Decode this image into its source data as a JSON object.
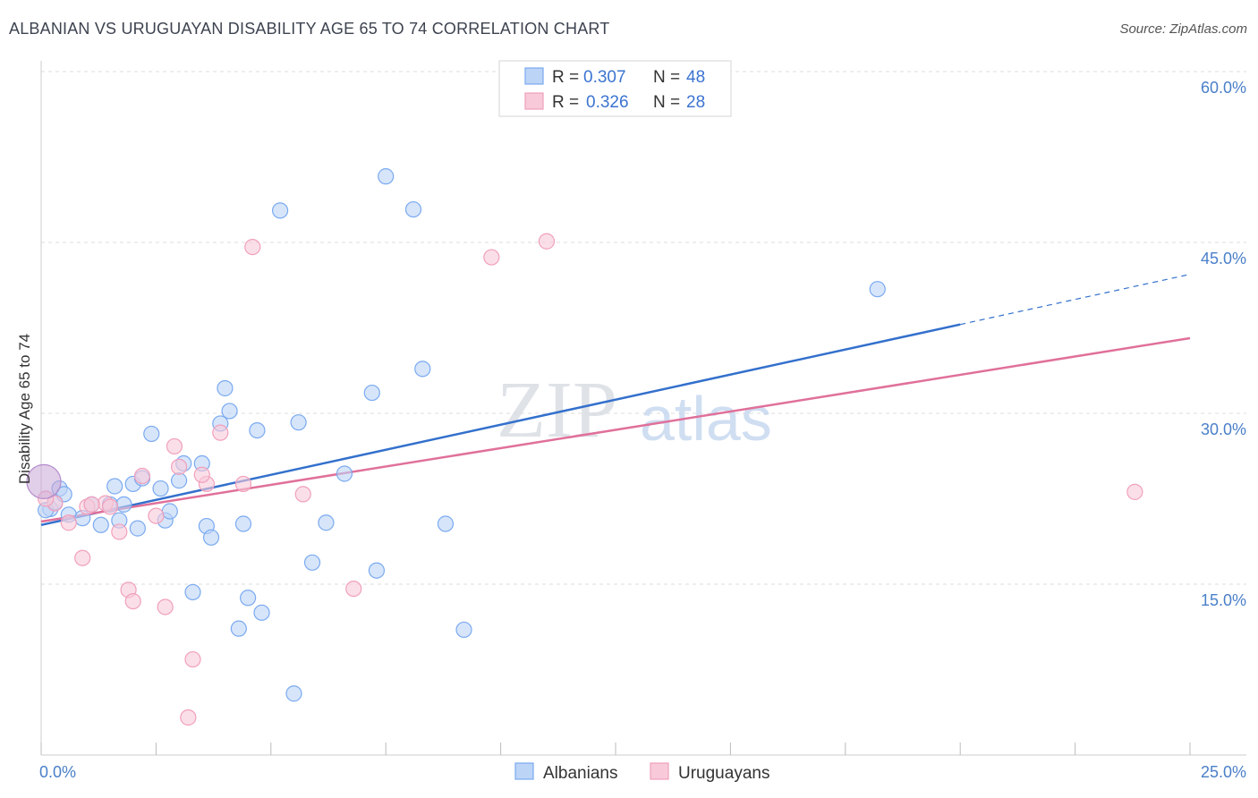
{
  "chart_data": {
    "type": "scatter",
    "title": "ALBANIAN VS URUGUAYAN DISABILITY AGE 65 TO 74 CORRELATION CHART",
    "source": "Source: ZipAtlas.com",
    "xlabel": "",
    "ylabel": "Disability Age 65 to 74",
    "xlim": [
      0,
      25
    ],
    "ylim": [
      0,
      60
    ],
    "x_tick_labels": {
      "min": "0.0%",
      "max": "25.0%"
    },
    "y_ticks": [
      15,
      30,
      45,
      60
    ],
    "y_tick_labels": [
      "15.0%",
      "30.0%",
      "45.0%",
      "60.0%"
    ],
    "watermark": {
      "zip": "ZIP",
      "atlas": "atlas"
    },
    "legend": {
      "r_label": "R =",
      "n_label": "N =",
      "entries": [
        {
          "series": "Albanians",
          "r": "0.307",
          "n": "48"
        },
        {
          "series": "Uruguayans",
          "r": "0.326",
          "n": "28"
        }
      ]
    },
    "series": [
      {
        "name": "Albanians",
        "color": "#7aaaf0",
        "fill": "#bcd4f6",
        "line_color": "#3370cc",
        "trend": {
          "x0": 0,
          "y0": 20.2,
          "x1": 20,
          "y1": 37.8,
          "dash_to_x": 25,
          "dash_to_y": 42.2
        },
        "points": [
          [
            0.2,
            21.6
          ],
          [
            0.4,
            23.4
          ],
          [
            0.6,
            21.1
          ],
          [
            0.9,
            20.8
          ],
          [
            1.1,
            22.0
          ],
          [
            1.3,
            20.2
          ],
          [
            1.5,
            22.0
          ],
          [
            1.6,
            23.6
          ],
          [
            1.7,
            20.6
          ],
          [
            2.0,
            23.8
          ],
          [
            2.1,
            19.9
          ],
          [
            2.2,
            24.3
          ],
          [
            2.4,
            28.2
          ],
          [
            2.6,
            23.4
          ],
          [
            2.7,
            20.6
          ],
          [
            2.8,
            21.4
          ],
          [
            3.0,
            24.1
          ],
          [
            3.1,
            25.6
          ],
          [
            3.3,
            14.3
          ],
          [
            3.5,
            25.6
          ],
          [
            3.6,
            20.1
          ],
          [
            3.7,
            19.1
          ],
          [
            3.9,
            29.1
          ],
          [
            4.0,
            32.2
          ],
          [
            4.1,
            30.2
          ],
          [
            4.3,
            11.1
          ],
          [
            4.4,
            20.3
          ],
          [
            4.5,
            13.8
          ],
          [
            4.7,
            28.5
          ],
          [
            4.8,
            12.5
          ],
          [
            5.2,
            47.8
          ],
          [
            5.5,
            5.4
          ],
          [
            5.6,
            29.2
          ],
          [
            5.9,
            16.9
          ],
          [
            6.2,
            20.4
          ],
          [
            6.6,
            24.7
          ],
          [
            7.2,
            31.8
          ],
          [
            7.3,
            16.2
          ],
          [
            7.5,
            50.8
          ],
          [
            8.1,
            47.9
          ],
          [
            8.3,
            33.9
          ],
          [
            8.8,
            20.3
          ],
          [
            9.2,
            11.0
          ],
          [
            18.2,
            40.9
          ],
          [
            0.1,
            21.5
          ],
          [
            0.3,
            22.2
          ],
          [
            1.8,
            22.0
          ],
          [
            0.5,
            22.9
          ]
        ],
        "big_point": [
          0.0,
          24.0
        ]
      },
      {
        "name": "Uruguayans",
        "color": "#f0a0bc",
        "fill": "#f8cad9",
        "line_color": "#e0709a",
        "trend": {
          "x0": 0,
          "y0": 20.5,
          "x1": 25,
          "y1": 36.6
        },
        "points": [
          [
            0.3,
            22.1
          ],
          [
            0.6,
            20.4
          ],
          [
            0.9,
            17.3
          ],
          [
            1.0,
            21.8
          ],
          [
            1.4,
            22.1
          ],
          [
            1.5,
            21.8
          ],
          [
            1.7,
            19.6
          ],
          [
            1.9,
            14.5
          ],
          [
            2.0,
            13.5
          ],
          [
            2.2,
            24.5
          ],
          [
            2.5,
            21.0
          ],
          [
            2.7,
            13.0
          ],
          [
            2.9,
            27.1
          ],
          [
            3.0,
            25.3
          ],
          [
            3.3,
            8.4
          ],
          [
            3.2,
            3.3
          ],
          [
            3.6,
            23.8
          ],
          [
            3.9,
            28.3
          ],
          [
            4.4,
            23.8
          ],
          [
            4.6,
            44.6
          ],
          [
            5.7,
            22.9
          ],
          [
            6.8,
            14.6
          ],
          [
            9.8,
            43.7
          ],
          [
            11.0,
            45.1
          ],
          [
            23.8,
            23.1
          ],
          [
            0.1,
            22.5
          ],
          [
            1.1,
            22.0
          ],
          [
            3.5,
            24.6
          ]
        ],
        "big_point": [
          0.0,
          24.0
        ]
      }
    ],
    "bottom_legend": [
      "Albanians",
      "Uruguayans"
    ]
  }
}
